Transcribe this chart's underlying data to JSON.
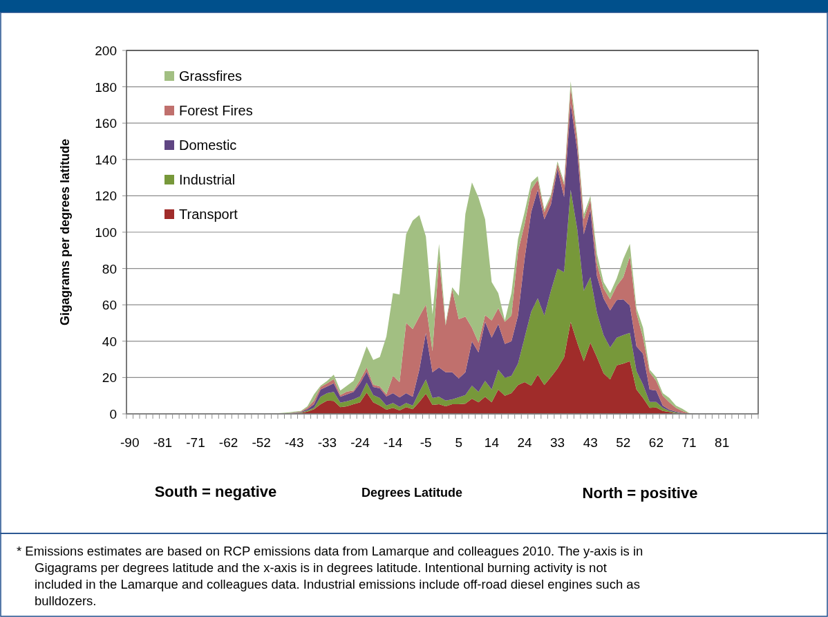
{
  "chart_data": {
    "type": "area",
    "stacked": true,
    "xlabel": "Degrees Latitude",
    "ylabel": "Gigagrams per degrees latitude",
    "categories": [
      "-90",
      null,
      null,
      null,
      null,
      "-81",
      null,
      null,
      null,
      null,
      "-71",
      null,
      null,
      null,
      null,
      "-62",
      null,
      null,
      null,
      null,
      "-52",
      null,
      null,
      null,
      null,
      "-43",
      null,
      null,
      null,
      null,
      "-33",
      null,
      null,
      null,
      null,
      "-24",
      null,
      null,
      null,
      null,
      "-14",
      null,
      null,
      null,
      null,
      "-5",
      null,
      null,
      null,
      null,
      "5",
      null,
      null,
      null,
      null,
      "14",
      null,
      null,
      null,
      null,
      "24",
      null,
      null,
      null,
      null,
      "33",
      null,
      null,
      null,
      null,
      "43",
      null,
      null,
      null,
      null,
      "52",
      null,
      null,
      null,
      null,
      "62",
      null,
      null,
      null,
      null,
      "71",
      null,
      null,
      null,
      null,
      "81",
      null,
      null,
      null,
      null,
      null
    ],
    "series": [
      {
        "name": "Transport",
        "color": "#a02c2a",
        "values": [
          0,
          0,
          0,
          0,
          0,
          0,
          0,
          0,
          0,
          0,
          0,
          0,
          0,
          0,
          0,
          0,
          0,
          0,
          0,
          0,
          0,
          0,
          0,
          0.1,
          0.2,
          0.3,
          0.5,
          1.2,
          2.6,
          5.3,
          7.3,
          7.1,
          3.7,
          4.2,
          5.3,
          6.4,
          11.8,
          6.4,
          4.6,
          2.3,
          3.3,
          1.9,
          3.7,
          2.6,
          6.6,
          11.1,
          4.9,
          5.3,
          4.2,
          5.3,
          5.3,
          5.6,
          8.4,
          6.4,
          9.4,
          6.4,
          13.4,
          10,
          11.4,
          15.9,
          17.5,
          15.5,
          21.6,
          15.9,
          20.2,
          25,
          31.1,
          50.7,
          39.2,
          29,
          39.2,
          31.1,
          22.3,
          18.9,
          26.7,
          27.7,
          29,
          13.4,
          8.7,
          3.3,
          3.5,
          1.6,
          1,
          0.3,
          0.1,
          0,
          0,
          0,
          0,
          0,
          0,
          0,
          0,
          0,
          0,
          0
        ]
      },
      {
        "name": "Industrial",
        "color": "#77983a",
        "values": [
          0,
          0,
          0,
          0,
          0,
          0,
          0,
          0,
          0,
          0,
          0,
          0,
          0,
          0,
          0,
          0,
          0,
          0,
          0,
          0,
          0,
          0,
          0,
          0,
          0,
          0.1,
          0.3,
          0.6,
          0.7,
          4.1,
          4.1,
          5,
          2.5,
          2.7,
          2.7,
          3.2,
          5.4,
          4,
          4.1,
          2.3,
          2.7,
          2,
          2.3,
          2,
          5.5,
          7.8,
          3.8,
          4.1,
          3.1,
          2.7,
          3.8,
          4.8,
          7.1,
          5.7,
          8.8,
          7,
          10.9,
          9.9,
          9.5,
          11.8,
          24.4,
          40.7,
          42,
          38.2,
          47.5,
          54.9,
          46.8,
          72.6,
          62.4,
          38.7,
          36,
          24.4,
          21,
          17.6,
          15.2,
          15.6,
          15.6,
          10.2,
          7.4,
          3.3,
          3.1,
          1.7,
          0.6,
          0.5,
          0.2,
          0,
          0,
          0,
          0,
          0,
          0,
          0,
          0,
          0,
          0,
          0
        ]
      },
      {
        "name": "Domestic",
        "color": "#5f4582",
        "values": [
          0,
          0,
          0,
          0,
          0,
          0,
          0,
          0,
          0,
          0,
          0,
          0,
          0,
          0,
          0,
          0,
          0,
          0,
          0,
          0,
          0,
          0,
          0.1,
          0.1,
          0.1,
          0.2,
          0.2,
          0.8,
          2,
          4,
          3.7,
          4.7,
          3.2,
          3.8,
          4.1,
          7.2,
          6,
          4.4,
          5.4,
          5,
          5.4,
          5.1,
          5.4,
          4.8,
          12.2,
          25.7,
          14.2,
          16.2,
          15.6,
          14.9,
          10.4,
          12.5,
          24.4,
          21.7,
          32.5,
          28.5,
          25.1,
          18.6,
          19,
          26.4,
          43.4,
          54.8,
          59.7,
          52.9,
          47.5,
          55,
          41.4,
          47.5,
          43.4,
          31.2,
          37.3,
          20.3,
          20.3,
          20.4,
          20.7,
          19.7,
          15,
          13.6,
          17,
          6.8,
          6.2,
          1.3,
          0.7,
          0.4,
          0.2,
          0.1,
          0,
          0,
          0,
          0,
          0,
          0,
          0,
          0,
          0,
          0
        ]
      },
      {
        "name": "Forest Fires",
        "color": "#c0706d",
        "values": [
          0,
          0,
          0,
          0,
          0,
          0,
          0,
          0,
          0,
          0,
          0,
          0,
          0,
          0,
          0,
          0,
          0,
          0,
          0,
          0,
          0,
          0,
          0,
          0,
          0.1,
          0.2,
          0.3,
          0.8,
          2,
          1.4,
          1.7,
          2.3,
          1,
          1.6,
          0.7,
          1.8,
          2.4,
          1.3,
          1,
          1.1,
          9.5,
          8.5,
          38.7,
          37.3,
          29.2,
          15.6,
          11.6,
          59.7,
          25.8,
          45.5,
          32.6,
          30.6,
          7.5,
          5.4,
          3.7,
          9.5,
          8.8,
          12.2,
          14.2,
          35.3,
          19,
          12.3,
          5.5,
          4,
          4.1,
          2.7,
          6.7,
          8.8,
          5.5,
          8.1,
          5.5,
          6.9,
          5.5,
          6.1,
          7.8,
          12.2,
          27.1,
          18.3,
          8.8,
          9.5,
          5.4,
          5.4,
          4.1,
          2.1,
          1,
          0.2,
          0,
          0,
          0,
          0,
          0,
          0,
          0,
          0,
          0,
          0
        ]
      },
      {
        "name": "Grassfires",
        "color": "#a2bf82",
        "values": [
          0,
          0,
          0,
          0,
          0,
          0,
          0,
          0,
          0,
          0,
          0,
          0,
          0,
          0,
          0,
          0,
          0,
          0,
          0,
          0,
          0,
          0,
          0.2,
          0.3,
          0.4,
          0.4,
          0.3,
          0.8,
          3.4,
          0.7,
          1.4,
          2.5,
          2.4,
          3.2,
          5.4,
          8.4,
          11.6,
          13.6,
          16.2,
          31.9,
          45.5,
          48.2,
          48.8,
          59.7,
          55.9,
          37.4,
          20.3,
          8.2,
          1.3,
          1.3,
          12.9,
          56.5,
          80,
          79.8,
          52.6,
          21.1,
          8.2,
          0.7,
          12.3,
          6.8,
          6.7,
          4.1,
          2,
          1.5,
          1.3,
          1.4,
          1.4,
          3.4,
          2.5,
          2.8,
          2,
          5.3,
          3.4,
          3.4,
          4.1,
          10.1,
          6.8,
          2.7,
          5.5,
          1.4,
          2,
          1.4,
          2.3,
          1.3,
          1.3,
          0.2,
          0,
          0,
          0,
          0,
          0,
          0,
          0,
          0,
          0,
          0
        ]
      }
    ],
    "ylim": [
      0,
      200
    ],
    "yticks": [
      0,
      20,
      40,
      60,
      80,
      100,
      120,
      140,
      160,
      180,
      200
    ],
    "grid": "y",
    "legend": "top left",
    "annotations": [
      "South = negative",
      "North = positive",
      "* Emissions estimates are based on RCP emissions data from Lamarque and colleagues 2010. The y-axis is in Gigagrams per degrees latitude and the x-axis is in degrees latitude. Intentional burning activity is not included in the Lamarque and colleagues data. Industrial emissions include off-road diesel engines such as bulldozers."
    ]
  }
}
